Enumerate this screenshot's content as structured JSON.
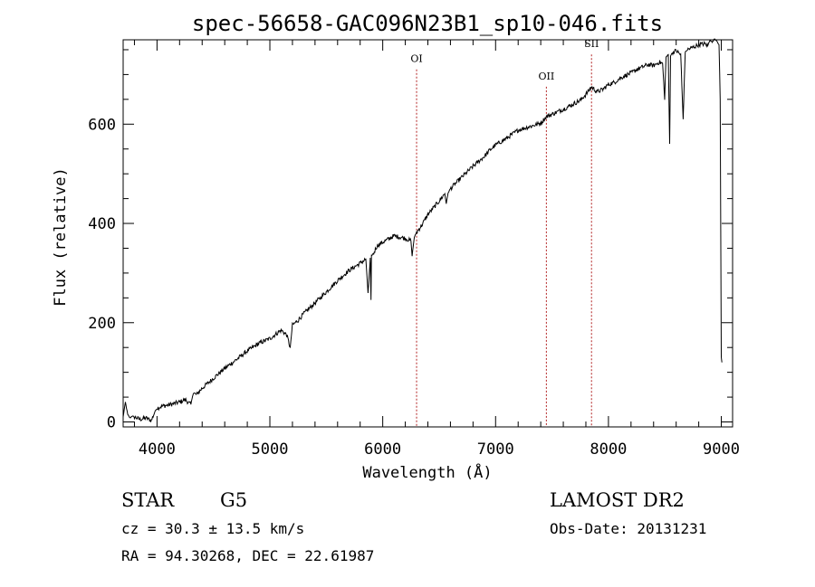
{
  "chart_data": {
    "type": "line",
    "title": "spec-56658-GAC096N23B1_sp10-046.fits",
    "xlabel": "Wavelength (Å)",
    "ylabel": "Flux (relative)",
    "xlim": [
      3700,
      9100
    ],
    "ylim": [
      -10,
      770
    ],
    "x_ticks": [
      4000,
      5000,
      6000,
      7000,
      8000,
      9000
    ],
    "x_tick_labels": [
      "4000",
      "5000",
      "6000",
      "7000",
      "8000",
      "9000"
    ],
    "y_ticks": [
      0,
      200,
      400,
      600
    ],
    "y_tick_labels": [
      "0",
      "200",
      "400",
      "600"
    ],
    "grid": false,
    "series": [
      {
        "x": [
          3700,
          3720,
          3740,
          3760,
          3780,
          3800,
          3850,
          3900,
          3950,
          3980,
          4000,
          4050,
          4100,
          4150,
          4200,
          4250,
          4300,
          4320,
          4350,
          4400,
          4450,
          4500,
          4600,
          4700,
          4800,
          4900,
          5000,
          5100,
          5150,
          5180,
          5200,
          5250,
          5300,
          5400,
          5500,
          5600,
          5700,
          5800,
          5850,
          5870,
          5890,
          5896,
          5900,
          5920,
          5950,
          6000,
          6100,
          6200,
          6250,
          6260,
          6280,
          6300,
          6350,
          6400,
          6500,
          6550,
          6563,
          6580,
          6600,
          6700,
          6800,
          6900,
          6950,
          7000,
          7100,
          7200,
          7300,
          7400,
          7450,
          7500,
          7600,
          7700,
          7750,
          7800,
          7850,
          7900,
          7950,
          8000,
          8050,
          8100,
          8150,
          8200,
          8250,
          8300,
          8350,
          8400,
          8450,
          8480,
          8498,
          8510,
          8530,
          8542,
          8550,
          8570,
          8600,
          8640,
          8662,
          8680,
          8700,
          8750,
          8800,
          8850,
          8880,
          8900,
          8920,
          8940,
          8960,
          8980,
          8990,
          9000,
          9005
        ],
        "y": [
          10,
          40,
          15,
          8,
          12,
          10,
          5,
          8,
          3,
          20,
          28,
          32,
          34,
          37,
          40,
          45,
          35,
          58,
          55,
          68,
          78,
          88,
          108,
          125,
          143,
          158,
          168,
          185,
          175,
          150,
          195,
          205,
          218,
          240,
          262,
          285,
          305,
          320,
          328,
          260,
          330,
          245,
          335,
          340,
          355,
          362,
          375,
          370,
          365,
          335,
          372,
          382,
          398,
          418,
          445,
          460,
          440,
          462,
          470,
          493,
          515,
          535,
          548,
          558,
          572,
          588,
          595,
          602,
          615,
          620,
          630,
          642,
          648,
          660,
          675,
          665,
          670,
          680,
          684,
          692,
          698,
          703,
          710,
          715,
          720,
          718,
          725,
          722,
          650,
          735,
          740,
          560,
          738,
          745,
          748,
          740,
          610,
          745,
          750,
          755,
          760,
          762,
          758,
          770,
          765,
          772,
          768,
          760,
          650,
          130,
          120
        ],
        "color": "#000000"
      }
    ],
    "lines": [
      {
        "label": "OI",
        "x": 6300,
        "label_y": 725
      },
      {
        "label": "OII",
        "x": 7450,
        "label_y": 690
      },
      {
        "label": "SII",
        "x": 7850,
        "label_y": 755
      }
    ],
    "line_color": "#b22222",
    "info": {
      "class": "STAR",
      "subclass": "G5",
      "cz": "cz = 30.3 ± 13.5 km/s",
      "radec": "RA =  94.30268, DEC =  22.61987",
      "survey": "LAMOST DR2",
      "obsdate": "Obs-Date: 20131231"
    }
  }
}
